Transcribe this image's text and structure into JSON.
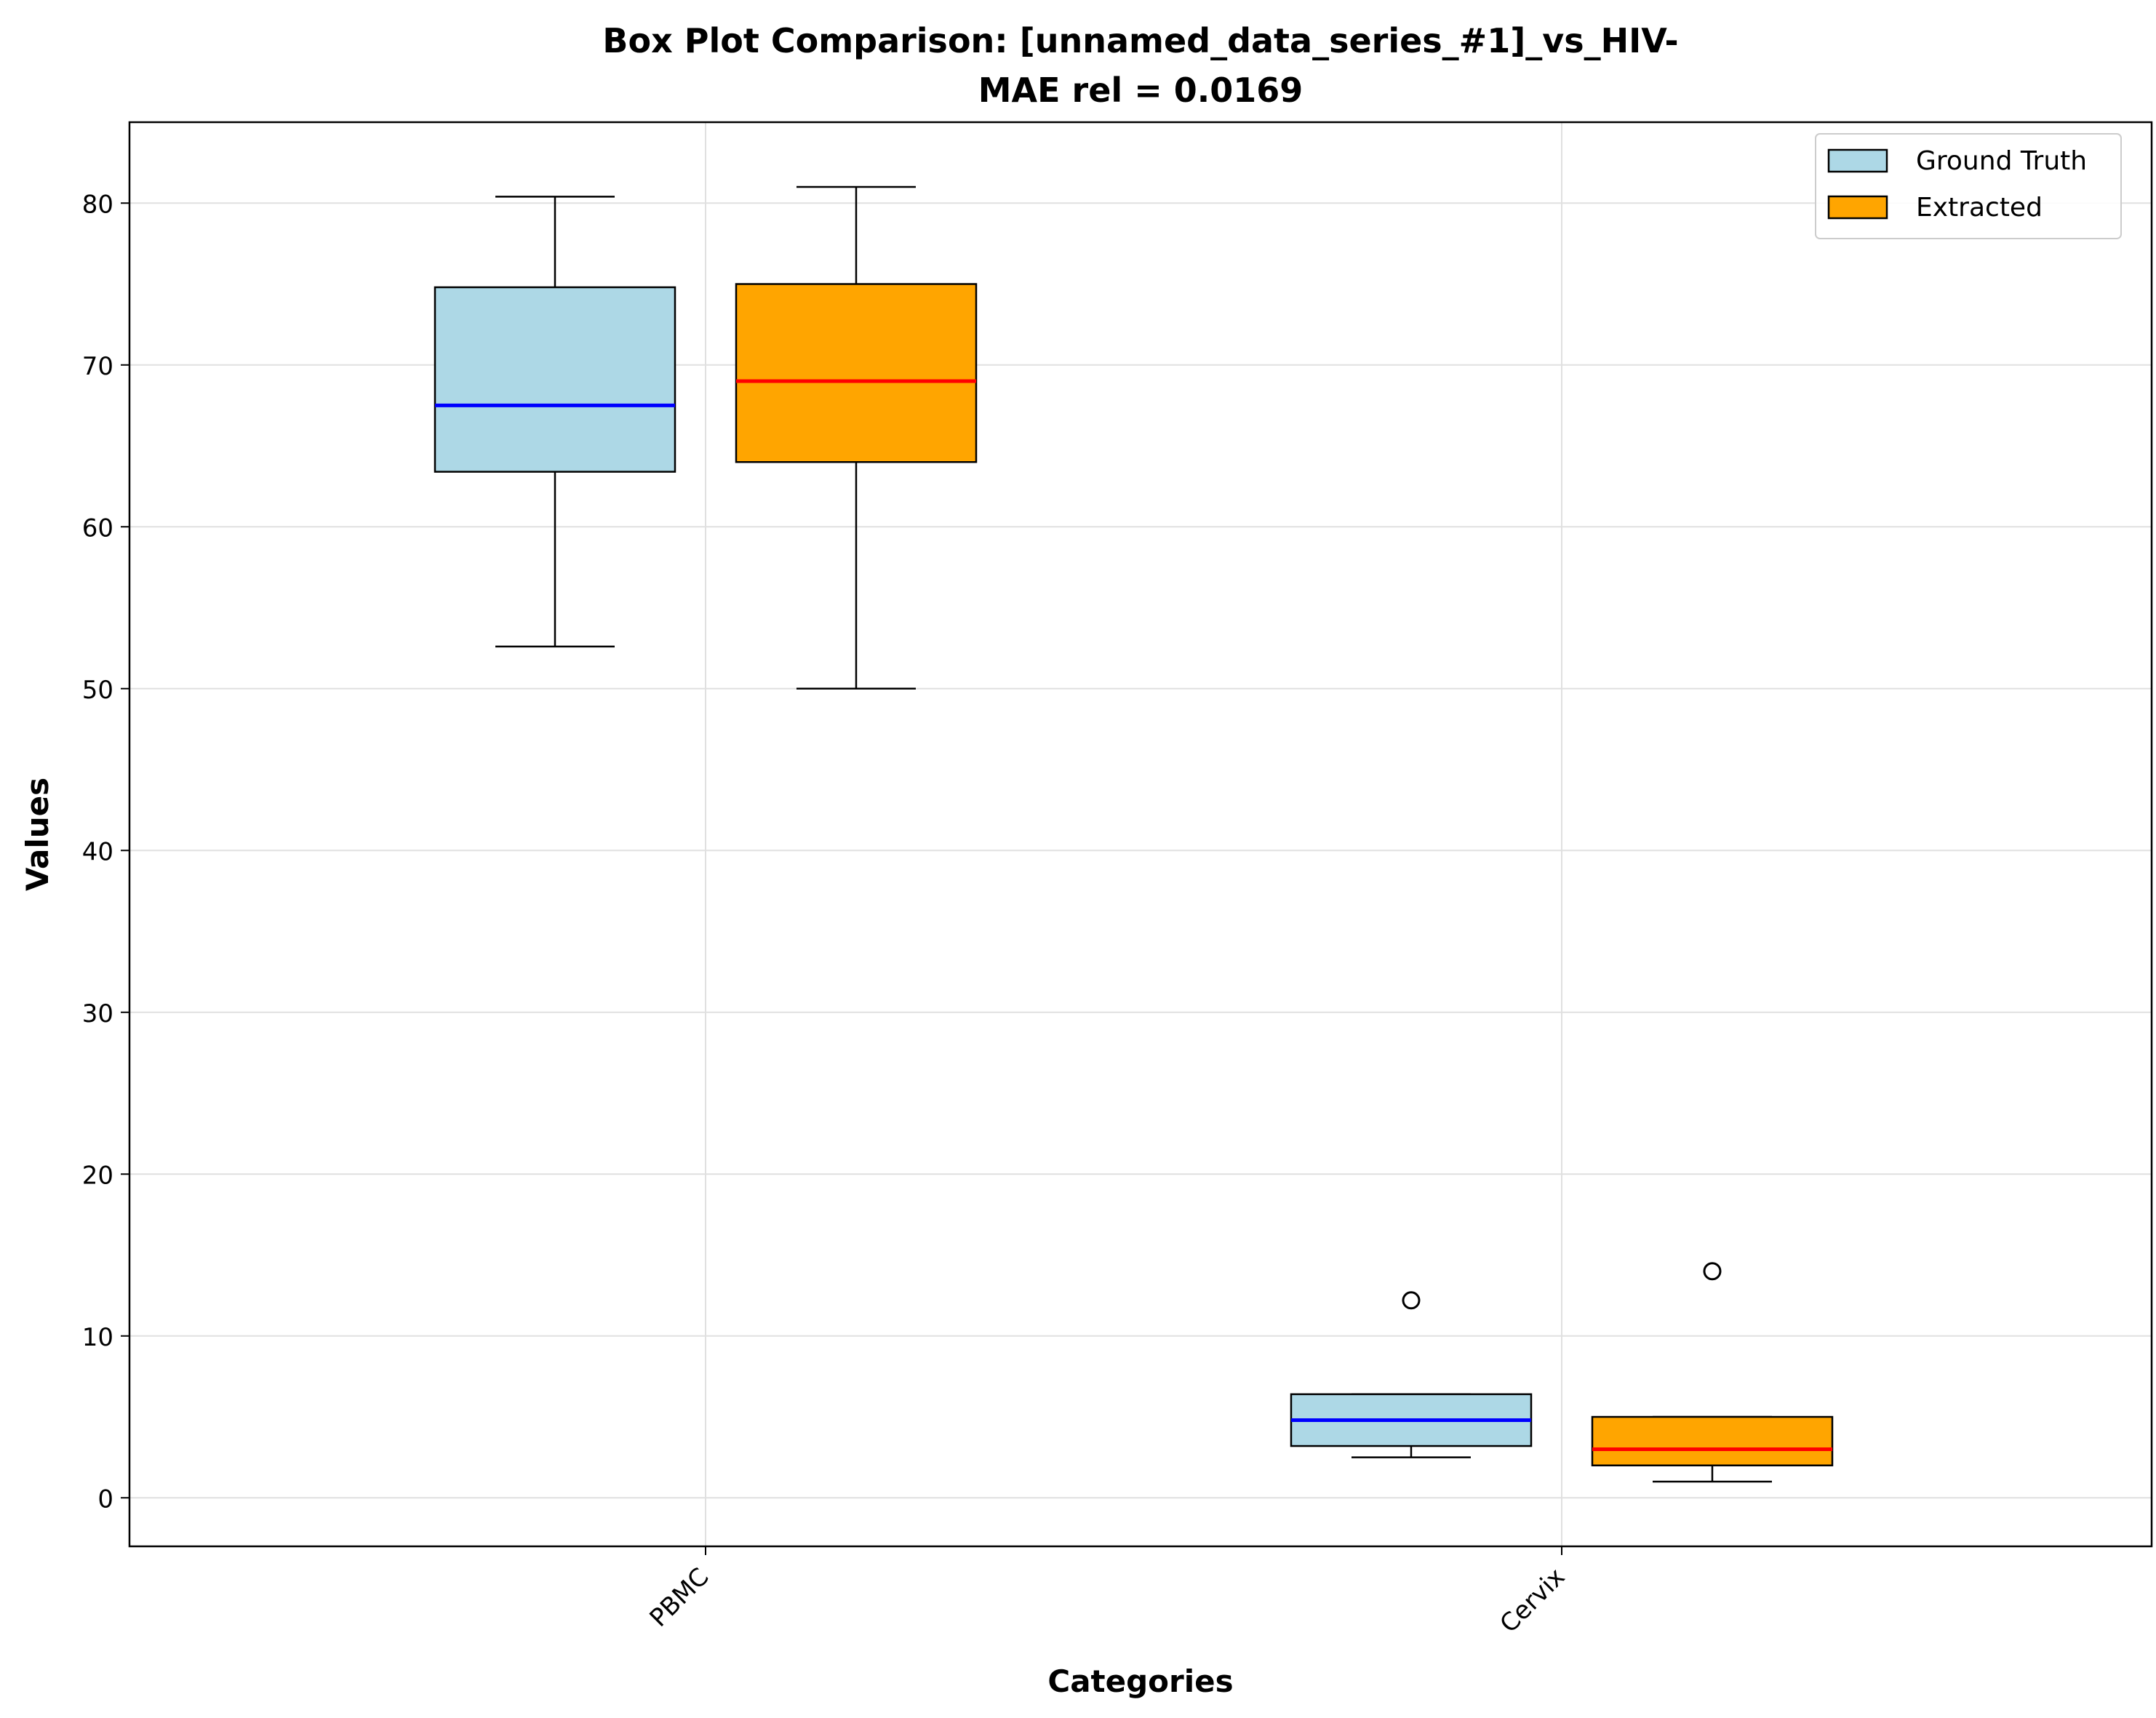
{
  "chart_data": {
    "type": "box",
    "title_line1": "Box Plot Comparison: [unnamed_data_series_#1]_vs_HIV-",
    "title_line2": "MAE rel = 0.0169",
    "xlabel": "Categories",
    "ylabel": "Values",
    "categories": [
      "PBMC",
      "Cervix"
    ],
    "ylim": [
      -3,
      85
    ],
    "yticks": [
      0,
      10,
      20,
      30,
      40,
      50,
      60,
      70,
      80
    ],
    "grid": true,
    "legend_position": "top-right",
    "series": [
      {
        "name": "Ground Truth",
        "fill": "#add8e6",
        "median_color": "#0000ff",
        "boxes": [
          {
            "whisker_low": 52.6,
            "q1": 63.4,
            "median": 67.5,
            "q3": 74.8,
            "whisker_high": 80.4,
            "outliers": []
          },
          {
            "whisker_low": 2.5,
            "q1": 3.2,
            "median": 4.8,
            "q3": 6.4,
            "whisker_high": 6.4,
            "outliers": [
              12.2
            ]
          }
        ]
      },
      {
        "name": "Extracted",
        "fill": "#ffa500",
        "median_color": "#ff0000",
        "boxes": [
          {
            "whisker_low": 50.0,
            "q1": 64.0,
            "median": 69.0,
            "q3": 75.0,
            "whisker_high": 81.0,
            "outliers": []
          },
          {
            "whisker_low": 1.0,
            "q1": 2.0,
            "median": 3.0,
            "q3": 5.0,
            "whisker_high": 5.0,
            "outliers": [
              14.0
            ]
          }
        ]
      }
    ]
  }
}
